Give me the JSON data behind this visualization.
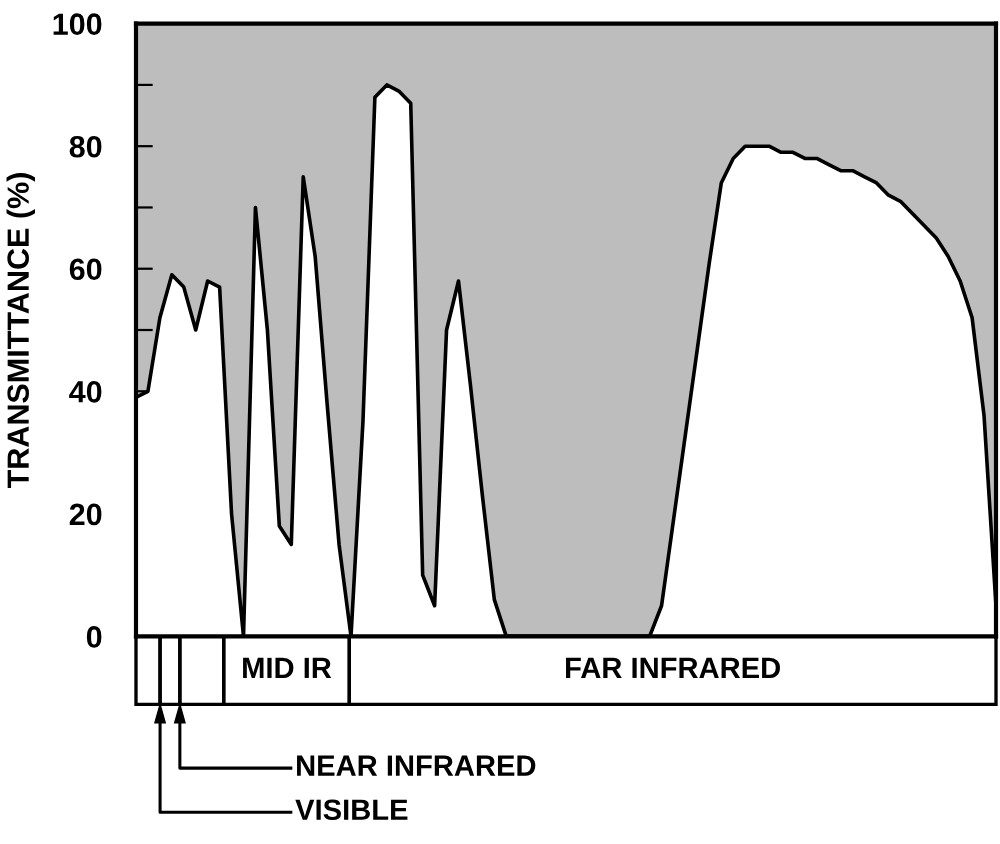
{
  "chart_data": {
    "type": "area",
    "ylabel": "TRANSMITTANCE (%)",
    "categories": [
      null,
      null,
      null,
      null,
      null,
      null,
      null,
      null,
      null,
      null,
      null,
      null,
      null,
      null,
      null,
      null,
      null,
      null,
      null,
      null,
      null,
      null,
      null,
      null,
      null,
      null,
      null,
      null,
      null,
      null,
      null,
      null,
      null,
      null,
      null,
      null,
      null,
      null,
      null,
      null,
      null,
      null,
      null,
      null,
      null,
      null,
      null,
      null,
      null,
      null,
      null,
      null,
      null,
      null,
      null,
      null,
      null,
      null,
      null,
      null,
      null,
      null,
      null,
      null,
      null,
      null,
      null,
      null,
      null,
      null,
      null,
      null,
      null
    ],
    "series": [
      {
        "color": "#ffffff",
        "values": [
          39,
          40,
          52,
          59,
          57,
          50,
          58,
          57,
          20,
          0,
          70,
          50,
          18,
          15,
          75,
          62,
          38,
          15,
          0,
          35,
          88,
          90,
          89,
          87,
          10,
          5,
          50,
          58,
          41,
          23,
          6,
          0,
          0,
          0,
          0,
          0,
          0,
          0,
          0,
          0,
          0,
          0,
          0,
          0,
          5,
          19,
          33,
          47,
          61,
          74,
          78,
          80,
          80,
          80,
          79,
          79,
          78,
          78,
          77,
          76,
          76,
          75,
          74,
          72,
          71,
          69,
          67,
          65,
          62,
          58,
          52,
          36,
          5
        ]
      }
    ],
    "ylim": [
      0,
      100
    ],
    "yticks": [
      0,
      {
        "value": 10,
        "label": null
      },
      20,
      {
        "value": 30,
        "label": null
      },
      40,
      {
        "value": 50,
        "label": null
      },
      60,
      {
        "value": 70,
        "label": null
      },
      80,
      {
        "value": 90,
        "label": null
      },
      100
    ],
    "tick_labels": "y",
    "grid": false,
    "legend": false,
    "annotations": [
      "MID IR",
      "FAR INFRARED",
      "NEAR INFRARED",
      "VISIBLE"
    ]
  }
}
